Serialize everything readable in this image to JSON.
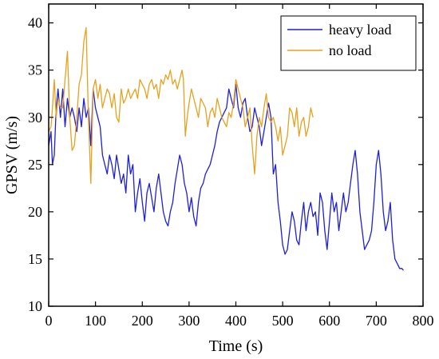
{
  "chart_data": {
    "type": "line",
    "title": "",
    "xlabel": "Time (s)",
    "ylabel": "GPSV (m/s)",
    "xlim": [
      0,
      800
    ],
    "ylim": [
      10,
      42
    ],
    "xticks": [
      0,
      100,
      200,
      300,
      400,
      500,
      600,
      700,
      800
    ],
    "yticks": [
      10,
      15,
      20,
      25,
      30,
      35,
      40
    ],
    "xtick_labels": [
      "0",
      "100",
      "200",
      "300",
      "400",
      "500",
      "600",
      "700",
      "800"
    ],
    "ytick_labels": [
      "10",
      "15",
      "20",
      "25",
      "30",
      "35",
      "40"
    ],
    "grid": false,
    "legend_position": "top-right",
    "series": [
      {
        "name": "heavy load",
        "color": "#1f1fd6",
        "x": [
          0,
          5,
          8,
          12,
          16,
          20,
          25,
          30,
          35,
          40,
          45,
          50,
          55,
          60,
          65,
          70,
          75,
          80,
          85,
          90,
          95,
          100,
          105,
          110,
          115,
          120,
          125,
          130,
          135,
          140,
          145,
          150,
          155,
          160,
          165,
          170,
          175,
          180,
          185,
          190,
          195,
          200,
          205,
          210,
          215,
          220,
          225,
          230,
          235,
          240,
          245,
          250,
          255,
          260,
          265,
          270,
          275,
          280,
          285,
          290,
          295,
          300,
          305,
          310,
          315,
          320,
          325,
          330,
          335,
          340,
          345,
          350,
          355,
          360,
          365,
          370,
          375,
          380,
          385,
          390,
          395,
          400,
          405,
          410,
          415,
          420,
          425,
          430,
          435,
          440,
          445,
          450,
          455,
          460,
          465,
          470,
          475,
          480,
          485,
          490,
          495,
          500,
          505,
          510,
          515,
          520,
          525,
          530,
          535,
          540,
          545,
          550,
          555,
          560,
          565,
          570,
          575,
          580,
          585,
          590,
          595,
          600,
          605,
          610,
          615,
          620,
          625,
          630,
          635,
          640,
          645,
          650,
          655,
          660,
          665,
          670,
          675,
          680,
          685,
          690,
          695,
          700,
          705,
          710,
          715,
          720,
          725,
          730,
          735,
          740,
          745,
          750,
          755,
          758
        ],
        "y": [
          27,
          28.5,
          25,
          26,
          31,
          33,
          30,
          33,
          29,
          32,
          30,
          31,
          30,
          28.5,
          31,
          29,
          32,
          30,
          31,
          27,
          33,
          31,
          30,
          29,
          26,
          25,
          24,
          26,
          25,
          23.5,
          26,
          24.5,
          23,
          24,
          22,
          26,
          24,
          25,
          20,
          22,
          23.5,
          21,
          19,
          22,
          23,
          21.5,
          20,
          22.5,
          24,
          22,
          20,
          19,
          18.5,
          20,
          21,
          23,
          24.5,
          26,
          25,
          23,
          22,
          20,
          21.5,
          19.5,
          18.5,
          21,
          22.5,
          23,
          24,
          24.5,
          25,
          26,
          27,
          28.5,
          29.5,
          30,
          30.5,
          31,
          33,
          32,
          31,
          33.5,
          31,
          30,
          31.5,
          32,
          30,
          28.5,
          29,
          31,
          30,
          29,
          27,
          28.5,
          30,
          31.5,
          30,
          24,
          25,
          21,
          19,
          16.5,
          15.5,
          16,
          18,
          20,
          19,
          17,
          16.5,
          19,
          21,
          18,
          20,
          21,
          19.5,
          20,
          17.5,
          22,
          21,
          18,
          16,
          19,
          22,
          20,
          21,
          18,
          20,
          22,
          20,
          21,
          23,
          25,
          26.5,
          24,
          20,
          18,
          16,
          16.5,
          17,
          18,
          21,
          25,
          26.5,
          24,
          20,
          18,
          19,
          21,
          17,
          15,
          14.5,
          14,
          14,
          13.8
        ]
      },
      {
        "name": "no load",
        "color": "#e6a21e",
        "x": [
          0,
          5,
          8,
          12,
          16,
          20,
          25,
          30,
          35,
          40,
          45,
          50,
          55,
          60,
          65,
          70,
          75,
          80,
          85,
          90,
          95,
          100,
          105,
          110,
          115,
          120,
          125,
          130,
          135,
          140,
          145,
          150,
          155,
          160,
          165,
          170,
          175,
          180,
          185,
          190,
          195,
          200,
          205,
          210,
          215,
          220,
          225,
          230,
          235,
          240,
          245,
          250,
          255,
          260,
          265,
          270,
          275,
          280,
          285,
          288,
          292,
          296,
          300,
          305,
          310,
          315,
          320,
          325,
          330,
          335,
          340,
          345,
          350,
          355,
          360,
          365,
          370,
          375,
          380,
          385,
          390,
          395,
          400,
          405,
          410,
          415,
          420,
          425,
          430,
          435,
          440,
          445,
          450,
          455,
          460,
          465,
          470,
          475,
          480,
          485,
          490,
          495,
          500,
          505,
          510,
          515,
          520,
          525,
          530,
          535,
          540,
          545,
          550,
          555,
          560,
          565
        ],
        "y": [
          28.5,
          29,
          31,
          34,
          30,
          32,
          31,
          31,
          34,
          37,
          30,
          26.5,
          27,
          30,
          33.5,
          34.5,
          38,
          39.5,
          30,
          23,
          33,
          34,
          32,
          33.5,
          31,
          32,
          33,
          32.5,
          31,
          32.5,
          30,
          29.5,
          33,
          31.5,
          32,
          33,
          32,
          32.5,
          33,
          32,
          34,
          33.5,
          33,
          32,
          33.5,
          34,
          33,
          33.5,
          32,
          34,
          33.5,
          34.5,
          34,
          35,
          33.5,
          34,
          33,
          34,
          35,
          34,
          28,
          30,
          31.5,
          33,
          32,
          31,
          30,
          32,
          31.5,
          31,
          29,
          30.5,
          31,
          30,
          32,
          31,
          30,
          29.5,
          29,
          30.5,
          30,
          31.5,
          34,
          33,
          32,
          31,
          29,
          30,
          31,
          27,
          24,
          28,
          30,
          29,
          31,
          32.5,
          30,
          29.5,
          30,
          29,
          27.5,
          29,
          26,
          27,
          28,
          31,
          30.5,
          29,
          31,
          28,
          29.5,
          30,
          28,
          29,
          31,
          30
        ]
      }
    ]
  }
}
